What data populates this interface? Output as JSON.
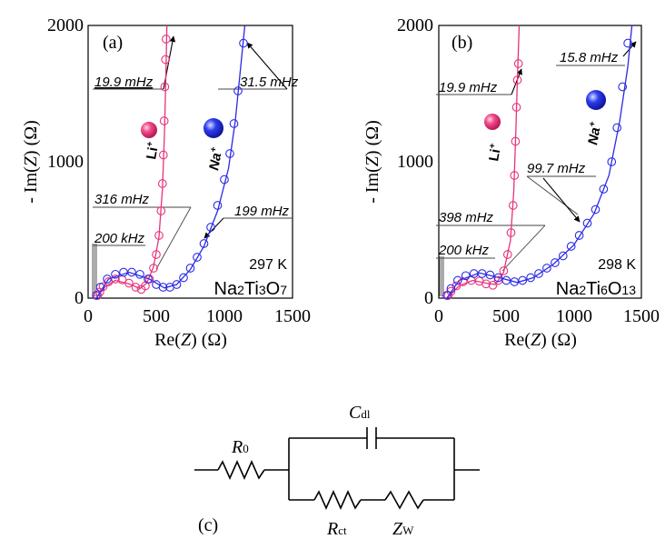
{
  "colors": {
    "li": "#e8317a",
    "na": "#2a2ae6",
    "axis": "#000000",
    "label_line": "#444444"
  },
  "chart_data": [
    {
      "type": "scatter",
      "panel_label": "(a)",
      "compound": {
        "pre": "Na",
        "s1": "2",
        "mid": "Ti",
        "s2": "3",
        "post": "O",
        "s3": "7"
      },
      "temperature": "297 K",
      "xlabel": {
        "pre": "Re(",
        "var": "Z",
        "post": ") (Ω)"
      },
      "ylabel": {
        "pre": "- Im(",
        "var": "Z",
        "post": ") (Ω)"
      },
      "xlim": [
        0,
        1500
      ],
      "ylim": [
        0,
        2000
      ],
      "xticks": [
        "0",
        "500",
        "1000",
        "1500"
      ],
      "yticks": [
        "0",
        "1000",
        "2000"
      ],
      "ion_labels": {
        "li": "Li",
        "na": "Na",
        "sup": "+"
      },
      "annotations": [
        "19.9 mHz",
        "31.5 mHz",
        "316 mHz",
        "199 mHz",
        "200 kHz"
      ],
      "series": [
        {
          "name": "Li+",
          "color": "#e8317a",
          "points": [
            [
              70,
              20
            ],
            [
              85,
              45
            ],
            [
              110,
              85
            ],
            [
              150,
              120
            ],
            [
              200,
              140
            ],
            [
              250,
              135
            ],
            [
              300,
              110
            ],
            [
              350,
              80
            ],
            [
              390,
              65
            ],
            [
              420,
              90
            ],
            [
              450,
              140
            ],
            [
              480,
              220
            ],
            [
              500,
              320
            ],
            [
              520,
              460
            ],
            [
              535,
              640
            ],
            [
              545,
              840
            ],
            [
              552,
              1050
            ],
            [
              558,
              1300
            ],
            [
              563,
              1550
            ],
            [
              568,
              1750
            ],
            [
              572,
              1900
            ]
          ],
          "fit": [
            [
              60,
              0
            ],
            [
              120,
              80
            ],
            [
              200,
              130
            ],
            [
              300,
              105
            ],
            [
              380,
              70
            ],
            [
              430,
              110
            ],
            [
              480,
              230
            ],
            [
              520,
              450
            ],
            [
              545,
              800
            ],
            [
              560,
              1200
            ],
            [
              570,
              1600
            ],
            [
              578,
              2000
            ]
          ]
        },
        {
          "name": "Na+",
          "color": "#2a2ae6",
          "points": [
            [
              60,
              20
            ],
            [
              90,
              80
            ],
            [
              140,
              140
            ],
            [
              200,
              175
            ],
            [
              260,
              190
            ],
            [
              320,
              190
            ],
            [
              380,
              175
            ],
            [
              440,
              140
            ],
            [
              500,
              100
            ],
            [
              550,
              80
            ],
            [
              600,
              80
            ],
            [
              650,
              100
            ],
            [
              700,
              150
            ],
            [
              750,
              220
            ],
            [
              800,
              300
            ],
            [
              850,
              400
            ],
            [
              900,
              520
            ],
            [
              950,
              680
            ],
            [
              1000,
              870
            ],
            [
              1040,
              1060
            ],
            [
              1070,
              1280
            ],
            [
              1100,
              1520
            ],
            [
              1140,
              1870
            ]
          ],
          "fit": [
            [
              60,
              0
            ],
            [
              150,
              140
            ],
            [
              300,
              190
            ],
            [
              450,
              140
            ],
            [
              560,
              75
            ],
            [
              650,
              100
            ],
            [
              750,
              210
            ],
            [
              850,
              380
            ],
            [
              950,
              640
            ],
            [
              1030,
              950
            ],
            [
              1080,
              1300
            ],
            [
              1120,
              1700
            ],
            [
              1150,
              2000
            ]
          ]
        }
      ]
    },
    {
      "type": "scatter",
      "panel_label": "(b)",
      "compound": {
        "pre": "Na",
        "s1": "2",
        "mid": "Ti",
        "s2": "6",
        "post": "O",
        "s3": "13"
      },
      "temperature": "298 K",
      "xlabel": {
        "pre": "Re(",
        "var": "Z",
        "post": ") (Ω)"
      },
      "ylabel": {
        "pre": "- Im(",
        "var": "Z",
        "post": ") (Ω)"
      },
      "xlim": [
        0,
        1500
      ],
      "ylim": [
        0,
        2000
      ],
      "xticks": [
        "0",
        "500",
        "1000",
        "1500"
      ],
      "yticks": [
        "0",
        "1000",
        "2000"
      ],
      "ion_labels": {
        "li": "Li",
        "na": "Na",
        "sup": "+"
      },
      "annotations": [
        "15.8 mHz",
        "19.9 mHz",
        "99.7 mHz",
        "398 mHz",
        "200 kHz"
      ],
      "series": [
        {
          "name": "Li+",
          "color": "#e8317a",
          "points": [
            [
              70,
              20
            ],
            [
              90,
              50
            ],
            [
              130,
              90
            ],
            [
              180,
              120
            ],
            [
              240,
              130
            ],
            [
              300,
              125
            ],
            [
              350,
              105
            ],
            [
              400,
              95
            ],
            [
              440,
              130
            ],
            [
              480,
              200
            ],
            [
              510,
              320
            ],
            [
              535,
              480
            ],
            [
              550,
              680
            ],
            [
              560,
              900
            ],
            [
              568,
              1150
            ],
            [
              575,
              1400
            ],
            [
              582,
              1600
            ],
            [
              590,
              1720
            ]
          ],
          "fit": [
            [
              60,
              0
            ],
            [
              150,
              90
            ],
            [
              250,
              130
            ],
            [
              350,
              110
            ],
            [
              420,
              100
            ],
            [
              480,
              190
            ],
            [
              530,
              420
            ],
            [
              555,
              780
            ],
            [
              570,
              1200
            ],
            [
              582,
              1600
            ],
            [
              595,
              2000
            ]
          ]
        },
        {
          "name": "Na+",
          "color": "#2a2ae6",
          "points": [
            [
              60,
              20
            ],
            [
              90,
              70
            ],
            [
              140,
              130
            ],
            [
              200,
              165
            ],
            [
              260,
              180
            ],
            [
              320,
              180
            ],
            [
              380,
              170
            ],
            [
              440,
              150
            ],
            [
              500,
              130
            ],
            [
              560,
              120
            ],
            [
              620,
              130
            ],
            [
              680,
              150
            ],
            [
              740,
              180
            ],
            [
              800,
              220
            ],
            [
              860,
              260
            ],
            [
              920,
              310
            ],
            [
              980,
              380
            ],
            [
              1040,
              460
            ],
            [
              1100,
              550
            ],
            [
              1160,
              650
            ],
            [
              1220,
              800
            ],
            [
              1280,
              1000
            ],
            [
              1320,
              1250
            ],
            [
              1360,
              1550
            ],
            [
              1400,
              1870
            ]
          ],
          "fit": [
            [
              60,
              0
            ],
            [
              150,
              130
            ],
            [
              300,
              185
            ],
            [
              450,
              150
            ],
            [
              580,
              115
            ],
            [
              700,
              150
            ],
            [
              850,
              250
            ],
            [
              1000,
              390
            ],
            [
              1150,
              620
            ],
            [
              1260,
              900
            ],
            [
              1340,
              1300
            ],
            [
              1400,
              1700
            ],
            [
              1430,
              2000
            ]
          ]
        }
      ]
    }
  ],
  "circuit": {
    "panel_label": "(c)",
    "r0": {
      "main": "R",
      "sub": "0"
    },
    "cdl": {
      "main": "C",
      "sub": "dl"
    },
    "rct": {
      "main": "R",
      "sub": "ct"
    },
    "zw": {
      "main": "Z",
      "sub": "W"
    }
  }
}
